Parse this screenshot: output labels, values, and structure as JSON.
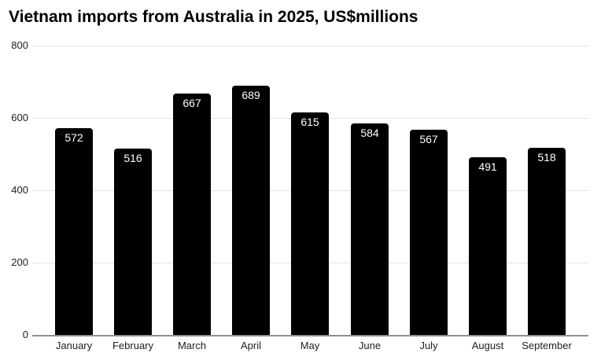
{
  "title": "Vietnam imports from Australia in 2025, US$millions",
  "chart_data": {
    "type": "bar",
    "title": "Vietnam imports from Australia in 2025, US$millions",
    "categories": [
      "January",
      "February",
      "March",
      "April",
      "May",
      "June",
      "July",
      "August",
      "September"
    ],
    "values": [
      572,
      516,
      667,
      689,
      615,
      584,
      567,
      491,
      518
    ],
    "xlabel": "",
    "ylabel": "",
    "ylim": [
      0,
      800
    ],
    "yticks": [
      0,
      200,
      400,
      600,
      800
    ],
    "grid": true,
    "legend": "none",
    "value_labels_shown": true,
    "colors": {
      "bar": "#000000",
      "value_label": "#ffffff",
      "gridline": "#e2e2e2",
      "baseline": "#8f8f8f",
      "axis_label": "#212121",
      "title": "#000000",
      "background": "#ffffff"
    }
  }
}
